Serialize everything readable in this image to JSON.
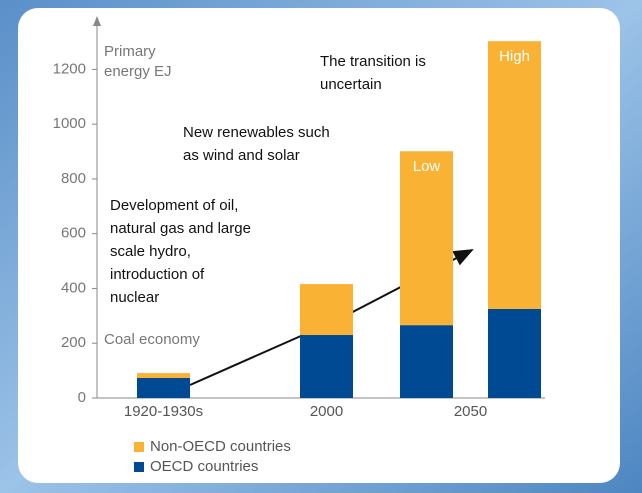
{
  "chart_data": {
    "type": "stacked-bar",
    "y_axis_label": [
      "Primary",
      "energy EJ"
    ],
    "categories": [
      "1920-1930s",
      "2000",
      null,
      null
    ],
    "category_groups": [
      {
        "label": "2050",
        "from": 2,
        "to": 3
      }
    ],
    "bar_labels": [
      null,
      null,
      "Low",
      "High"
    ],
    "series": [
      {
        "name": "OECD countries",
        "color": "#004a93",
        "values": [
          73,
          230,
          266,
          325
        ]
      },
      {
        "name": "Non-OECD countries",
        "color": "#f9b233",
        "values": [
          18,
          186,
          635,
          978
        ]
      }
    ],
    "ylim": [
      0,
      1300
    ],
    "yticks": [
      0,
      200,
      400,
      600,
      800,
      1000,
      1200
    ],
    "annotations": [
      {
        "lines": [
          "The transition is",
          "uncertain"
        ]
      },
      {
        "lines": [
          "New renewables such",
          "as wind and solar"
        ]
      },
      {
        "lines": [
          "Development of oil,",
          "natural gas and large",
          "scale hydro,",
          "introduction of",
          "nuclear"
        ]
      },
      {
        "lines": [
          "Coal economy"
        ]
      }
    ]
  }
}
